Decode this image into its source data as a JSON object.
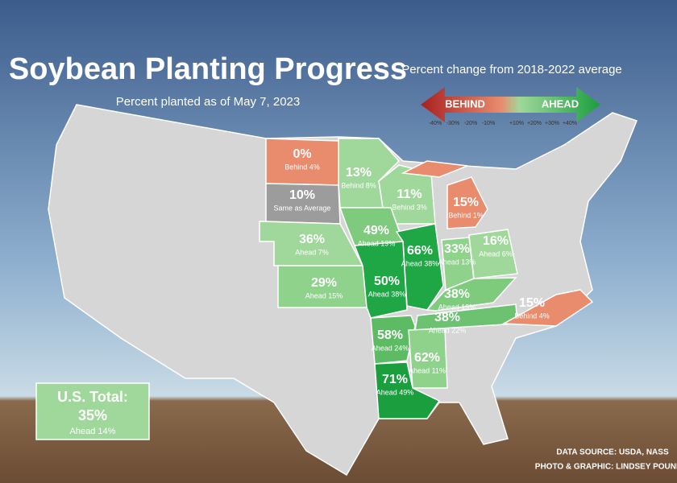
{
  "header": {
    "title": "Soybean Planting Progress",
    "subtitle": "Percent planted as of May 7, 2023"
  },
  "legend": {
    "title": "Percent change from 2018-2022 average",
    "behind": "BEHIND",
    "ahead": "AHEAD",
    "ticks": [
      "-40%",
      "-30%",
      "-20%",
      "-10%",
      "+10%",
      "+20%",
      "+30%",
      "+40%"
    ]
  },
  "states": [
    {
      "percent": "0%",
      "change": "Behind 4%",
      "color": "#e98c6e"
    },
    {
      "percent": "13%",
      "change": "Behind 8%",
      "color": "#9fd89a"
    },
    {
      "percent": "10%",
      "change": "Same as Average",
      "color": "#9c9c9c"
    },
    {
      "percent": "11%",
      "change": "Behind 3%",
      "color": "#9fd89a"
    },
    {
      "percent": "15%",
      "change": "Behind 1%",
      "color": "#e98c6e"
    },
    {
      "percent": "36%",
      "change": "Ahead 7%",
      "color": "#9fd89a"
    },
    {
      "percent": "49%",
      "change": "Ahead 19%",
      "color": "#7ecb7e"
    },
    {
      "percent": "66%",
      "change": "Ahead 38%",
      "color": "#1fa645"
    },
    {
      "percent": "33%",
      "change": "Ahead 13%",
      "color": "#8fd28c"
    },
    {
      "percent": "16%",
      "change": "Ahead 6%",
      "color": "#9fd89a"
    },
    {
      "percent": "29%",
      "change": "Ahead 15%",
      "color": "#8fd28c"
    },
    {
      "percent": "50%",
      "change": "Ahead 38%",
      "color": "#1fa645"
    },
    {
      "percent": "38%",
      "change": "Ahead 19%",
      "color": "#7ecb7e"
    },
    {
      "percent": "38%",
      "change": "Ahead 22%",
      "color": "#6cc270"
    },
    {
      "percent": "15%",
      "change": "Behind 4%",
      "color": "#e98c6e"
    },
    {
      "percent": "58%",
      "change": "Ahead 24%",
      "color": "#5dbb64"
    },
    {
      "percent": "62%",
      "change": "Ahead 11%",
      "color": "#8fd28c"
    },
    {
      "percent": "71%",
      "change": "Ahead 49%",
      "color": "#1a9e3e"
    }
  ],
  "total": {
    "label": "U.S. Total:",
    "percent": "35%",
    "change": "Ahead 14%",
    "color": "#9fd89a"
  },
  "credits": {
    "source": "DATA SOURCE: USDA, NASS",
    "photo": "PHOTO & GRAPHIC: LINDSEY POUND"
  }
}
